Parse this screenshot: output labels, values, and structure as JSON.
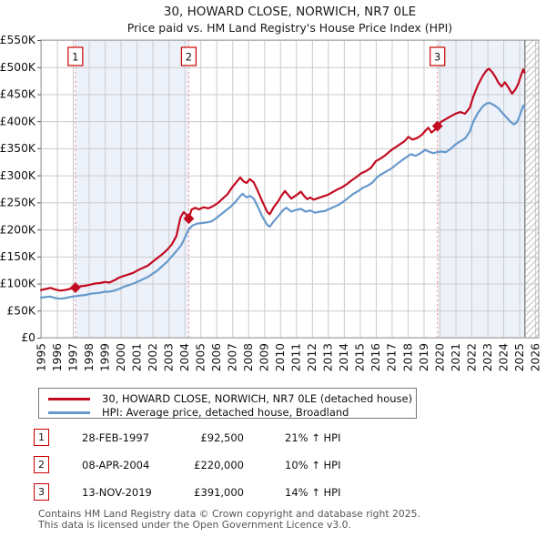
{
  "header": {
    "title": "30, HOWARD CLOSE, NORWICH, NR7 0LE",
    "subtitle": "Price paid vs. HM Land Registry's House Price Index (HPI)"
  },
  "chart_data": {
    "type": "line",
    "title": "30, HOWARD CLOSE, NORWICH, NR7 0LE",
    "subtitle": "Price paid vs. HM Land Registry's House Price Index (HPI)",
    "xlabel": "",
    "ylabel": "",
    "xlim": [
      1995,
      2026.25
    ],
    "ylim": [
      0,
      550
    ],
    "grid": true,
    "x_ticks": [
      1995,
      1996,
      1997,
      1998,
      1999,
      2000,
      2001,
      2002,
      2003,
      2004,
      2005,
      2006,
      2007,
      2008,
      2009,
      2010,
      2011,
      2012,
      2013,
      2014,
      2015,
      2016,
      2017,
      2018,
      2019,
      2020,
      2021,
      2022,
      2023,
      2024,
      2025,
      2026
    ],
    "y_ticks": [
      0,
      50,
      100,
      150,
      200,
      250,
      300,
      350,
      400,
      450,
      500,
      550
    ],
    "y_tick_labels": [
      "£0",
      "£50K",
      "£100K",
      "£150K",
      "£200K",
      "£250K",
      "£300K",
      "£350K",
      "£400K",
      "£450K",
      "£500K",
      "£550K"
    ],
    "units": "GBP thousands",
    "colors": {
      "property_line": "#c30b20",
      "hpi_line": "#6699cc",
      "sale_dashed": "#f28b8b",
      "shade": "#edf1fa",
      "grid": "#cbcbcb",
      "border": "#a0a0a0",
      "hatch": "#c0c0c0",
      "hatch_edge": "#8a8a8a",
      "marker_box_border": "#cc0000"
    },
    "shaded_regions": [
      [
        1997.16,
        2004.27
      ],
      [
        2019.87,
        2025.35
      ]
    ],
    "hatch_start": 2025.35,
    "sales": [
      {
        "n": "1",
        "x": 1997.16,
        "y": 92.5
      },
      {
        "n": "2",
        "x": 2004.27,
        "y": 220
      },
      {
        "n": "3",
        "x": 2019.87,
        "y": 391
      }
    ],
    "series": [
      {
        "name": "30, HOWARD CLOSE, NORWICH, NR7 0LE (detached house)",
        "color": "#c30b20",
        "points": [
          [
            1995.0,
            88
          ],
          [
            1995.3,
            90
          ],
          [
            1995.6,
            92
          ],
          [
            1995.9,
            89
          ],
          [
            1996.2,
            87
          ],
          [
            1996.5,
            88
          ],
          [
            1996.8,
            90
          ],
          [
            1997.16,
            92.5
          ],
          [
            1997.5,
            95
          ],
          [
            1997.8,
            96
          ],
          [
            1998.1,
            98
          ],
          [
            1998.4,
            100
          ],
          [
            1998.7,
            101
          ],
          [
            1999.0,
            103
          ],
          [
            1999.3,
            102
          ],
          [
            1999.6,
            106
          ],
          [
            1999.9,
            111
          ],
          [
            2000.2,
            114
          ],
          [
            2000.5,
            117
          ],
          [
            2000.8,
            120
          ],
          [
            2001.1,
            125
          ],
          [
            2001.4,
            129
          ],
          [
            2001.7,
            133
          ],
          [
            2002.0,
            140
          ],
          [
            2002.3,
            147
          ],
          [
            2002.6,
            154
          ],
          [
            2002.9,
            162
          ],
          [
            2003.2,
            172
          ],
          [
            2003.5,
            188
          ],
          [
            2003.75,
            222
          ],
          [
            2003.95,
            232
          ],
          [
            2004.1,
            228
          ],
          [
            2004.27,
            220
          ],
          [
            2004.45,
            237
          ],
          [
            2004.7,
            240
          ],
          [
            2004.9,
            237
          ],
          [
            2005.2,
            241
          ],
          [
            2005.5,
            239
          ],
          [
            2005.8,
            243
          ],
          [
            2006.1,
            249
          ],
          [
            2006.4,
            257
          ],
          [
            2006.7,
            265
          ],
          [
            2007.0,
            278
          ],
          [
            2007.3,
            289
          ],
          [
            2007.5,
            296
          ],
          [
            2007.7,
            289
          ],
          [
            2007.9,
            286
          ],
          [
            2008.1,
            293
          ],
          [
            2008.35,
            287
          ],
          [
            2008.6,
            271
          ],
          [
            2008.9,
            251
          ],
          [
            2009.2,
            232
          ],
          [
            2009.35,
            228
          ],
          [
            2009.6,
            241
          ],
          [
            2009.9,
            253
          ],
          [
            2010.1,
            263
          ],
          [
            2010.3,
            271
          ],
          [
            2010.5,
            264
          ],
          [
            2010.7,
            257
          ],
          [
            2010.9,
            261
          ],
          [
            2011.1,
            265
          ],
          [
            2011.3,
            270
          ],
          [
            2011.5,
            262
          ],
          [
            2011.7,
            256
          ],
          [
            2011.9,
            259
          ],
          [
            2012.1,
            255
          ],
          [
            2012.4,
            258
          ],
          [
            2012.7,
            261
          ],
          [
            2013.0,
            264
          ],
          [
            2013.3,
            269
          ],
          [
            2013.6,
            274
          ],
          [
            2013.9,
            278
          ],
          [
            2014.2,
            284
          ],
          [
            2014.5,
            291
          ],
          [
            2014.8,
            297
          ],
          [
            2015.1,
            304
          ],
          [
            2015.4,
            308
          ],
          [
            2015.7,
            314
          ],
          [
            2016.0,
            326
          ],
          [
            2016.3,
            331
          ],
          [
            2016.6,
            337
          ],
          [
            2016.9,
            345
          ],
          [
            2017.2,
            351
          ],
          [
            2017.5,
            357
          ],
          [
            2017.8,
            363
          ],
          [
            2018.05,
            371
          ],
          [
            2018.3,
            366
          ],
          [
            2018.6,
            369
          ],
          [
            2018.9,
            375
          ],
          [
            2019.1,
            382
          ],
          [
            2019.3,
            388
          ],
          [
            2019.5,
            379
          ],
          [
            2019.7,
            384
          ],
          [
            2019.87,
            391
          ],
          [
            2020.1,
            399
          ],
          [
            2020.4,
            404
          ],
          [
            2020.7,
            409
          ],
          [
            2021.0,
            414
          ],
          [
            2021.3,
            417
          ],
          [
            2021.6,
            414
          ],
          [
            2021.9,
            425
          ],
          [
            2022.1,
            444
          ],
          [
            2022.4,
            466
          ],
          [
            2022.7,
            483
          ],
          [
            2022.95,
            494
          ],
          [
            2023.1,
            497
          ],
          [
            2023.3,
            491
          ],
          [
            2023.5,
            482
          ],
          [
            2023.7,
            471
          ],
          [
            2023.9,
            464
          ],
          [
            2024.1,
            472
          ],
          [
            2024.35,
            461
          ],
          [
            2024.55,
            451
          ],
          [
            2024.75,
            458
          ],
          [
            2024.95,
            470
          ],
          [
            2025.1,
            484
          ],
          [
            2025.25,
            496
          ],
          [
            2025.33,
            490
          ]
        ]
      },
      {
        "name": "HPI: Average price, detached house, Broadland",
        "color": "#6699cc",
        "points": [
          [
            1995.0,
            74
          ],
          [
            1995.3,
            75
          ],
          [
            1995.6,
            76
          ],
          [
            1995.9,
            73
          ],
          [
            1996.2,
            72
          ],
          [
            1996.5,
            73
          ],
          [
            1996.8,
            75
          ],
          [
            1997.16,
            76.5
          ],
          [
            1997.5,
            78
          ],
          [
            1997.8,
            79
          ],
          [
            1998.1,
            81
          ],
          [
            1998.4,
            82
          ],
          [
            1998.7,
            83
          ],
          [
            1999.0,
            85
          ],
          [
            1999.3,
            85
          ],
          [
            1999.6,
            87
          ],
          [
            1999.9,
            90
          ],
          [
            2000.2,
            94
          ],
          [
            2000.5,
            97
          ],
          [
            2000.8,
            100
          ],
          [
            2001.1,
            104
          ],
          [
            2001.4,
            108
          ],
          [
            2001.7,
            112
          ],
          [
            2002.0,
            118
          ],
          [
            2002.3,
            124
          ],
          [
            2002.6,
            132
          ],
          [
            2002.9,
            140
          ],
          [
            2003.2,
            150
          ],
          [
            2003.5,
            160
          ],
          [
            2003.8,
            171
          ],
          [
            2004.0,
            183
          ],
          [
            2004.27,
            200
          ],
          [
            2004.5,
            207
          ],
          [
            2004.8,
            211
          ],
          [
            2005.1,
            212
          ],
          [
            2005.4,
            213
          ],
          [
            2005.7,
            215
          ],
          [
            2006.0,
            221
          ],
          [
            2006.3,
            228
          ],
          [
            2006.6,
            235
          ],
          [
            2006.9,
            242
          ],
          [
            2007.2,
            251
          ],
          [
            2007.45,
            260
          ],
          [
            2007.65,
            266
          ],
          [
            2007.9,
            259
          ],
          [
            2008.1,
            262
          ],
          [
            2008.35,
            257
          ],
          [
            2008.6,
            242
          ],
          [
            2008.9,
            223
          ],
          [
            2009.2,
            208
          ],
          [
            2009.35,
            205
          ],
          [
            2009.6,
            215
          ],
          [
            2009.9,
            225
          ],
          [
            2010.2,
            236
          ],
          [
            2010.4,
            240
          ],
          [
            2010.7,
            233
          ],
          [
            2011.0,
            236
          ],
          [
            2011.3,
            238
          ],
          [
            2011.6,
            233
          ],
          [
            2011.9,
            235
          ],
          [
            2012.2,
            231
          ],
          [
            2012.5,
            233
          ],
          [
            2012.8,
            234
          ],
          [
            2013.1,
            238
          ],
          [
            2013.4,
            242
          ],
          [
            2013.7,
            246
          ],
          [
            2014.0,
            252
          ],
          [
            2014.3,
            259
          ],
          [
            2014.6,
            266
          ],
          [
            2014.9,
            271
          ],
          [
            2015.2,
            277
          ],
          [
            2015.5,
            281
          ],
          [
            2015.8,
            287
          ],
          [
            2016.1,
            297
          ],
          [
            2016.4,
            303
          ],
          [
            2016.7,
            308
          ],
          [
            2017.0,
            313
          ],
          [
            2017.3,
            320
          ],
          [
            2017.6,
            327
          ],
          [
            2017.9,
            333
          ],
          [
            2018.2,
            339
          ],
          [
            2018.5,
            336
          ],
          [
            2018.8,
            341
          ],
          [
            2019.1,
            347
          ],
          [
            2019.4,
            343
          ],
          [
            2019.6,
            341
          ],
          [
            2019.87,
            343
          ],
          [
            2020.1,
            344
          ],
          [
            2020.4,
            343
          ],
          [
            2020.7,
            349
          ],
          [
            2021.0,
            357
          ],
          [
            2021.3,
            363
          ],
          [
            2021.6,
            368
          ],
          [
            2021.9,
            381
          ],
          [
            2022.1,
            398
          ],
          [
            2022.4,
            415
          ],
          [
            2022.7,
            427
          ],
          [
            2022.95,
            433
          ],
          [
            2023.15,
            434
          ],
          [
            2023.4,
            430
          ],
          [
            2023.7,
            424
          ],
          [
            2023.95,
            415
          ],
          [
            2024.2,
            407
          ],
          [
            2024.45,
            399
          ],
          [
            2024.65,
            394
          ],
          [
            2024.85,
            398
          ],
          [
            2025.0,
            408
          ],
          [
            2025.15,
            420
          ],
          [
            2025.25,
            429
          ],
          [
            2025.33,
            425
          ]
        ]
      }
    ]
  },
  "legend": {
    "items": [
      {
        "label": "30, HOWARD CLOSE, NORWICH, NR7 0LE (detached house)",
        "color": "#c30b20"
      },
      {
        "label": "HPI: Average price, detached house, Broadland",
        "color": "#6699cc"
      }
    ]
  },
  "table": {
    "rows": [
      {
        "num": "1",
        "date": "28-FEB-1997",
        "price": "£92,500",
        "hpi": "21% ↑ HPI"
      },
      {
        "num": "2",
        "date": "08-APR-2004",
        "price": "£220,000",
        "hpi": "10% ↑ HPI"
      },
      {
        "num": "3",
        "date": "13-NOV-2019",
        "price": "£391,000",
        "hpi": "14% ↑ HPI"
      }
    ]
  },
  "footer": {
    "line1": "Contains HM Land Registry data © Crown copyright and database right 2025.",
    "line2": "This data is licensed under the Open Government Licence v3.0."
  }
}
